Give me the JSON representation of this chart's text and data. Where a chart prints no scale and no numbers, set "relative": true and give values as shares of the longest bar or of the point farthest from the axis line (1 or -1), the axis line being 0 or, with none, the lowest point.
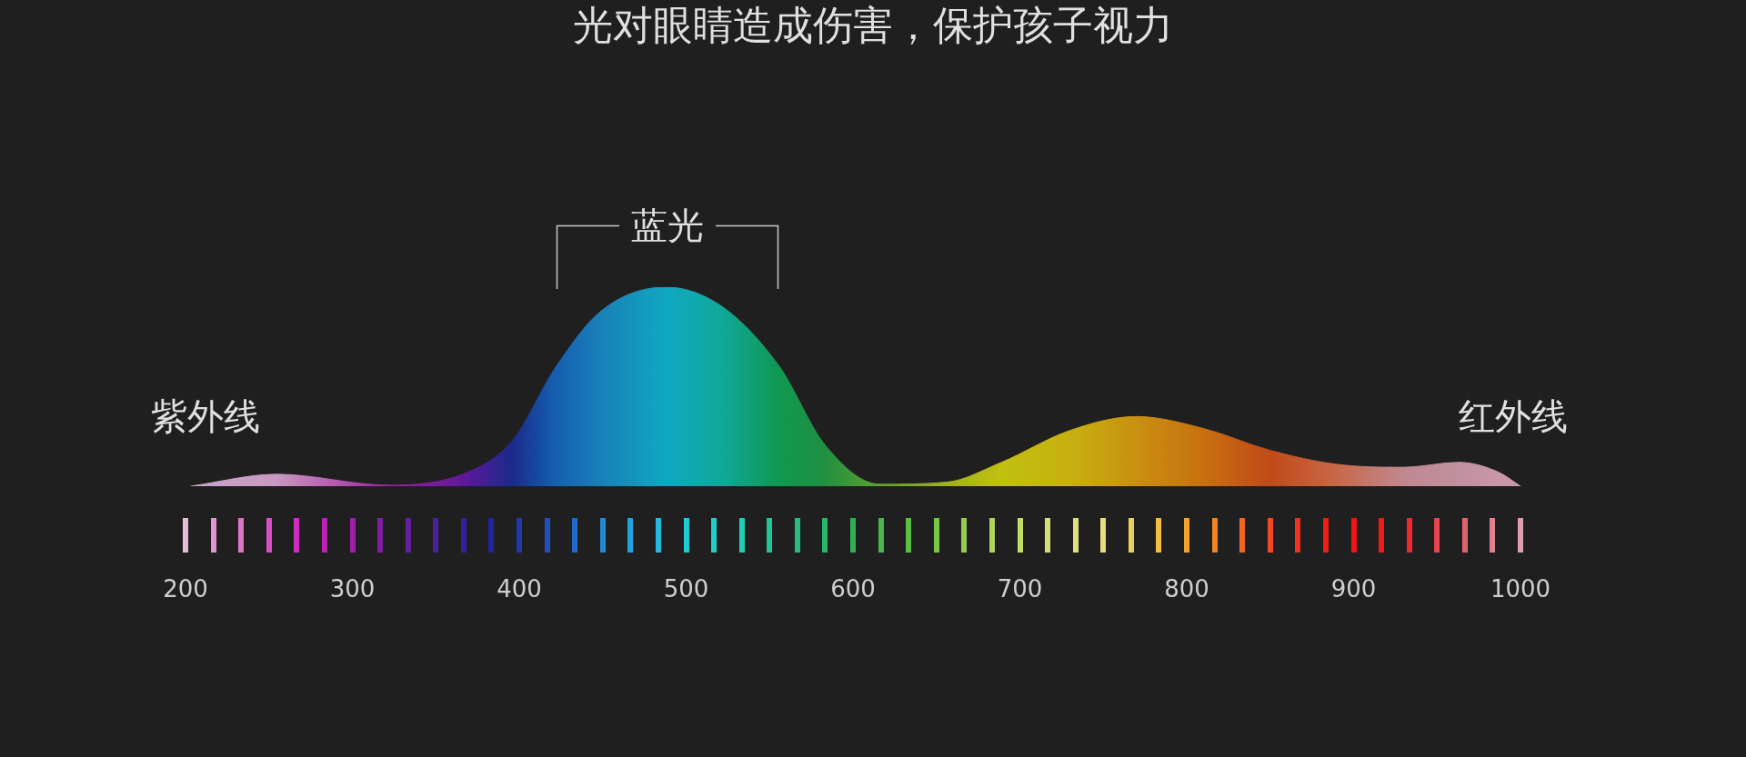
{
  "chart_data": {
    "type": "area",
    "title": "光对眼睛造成伤害，保护孩子视力",
    "relative": true,
    "x": [
      203,
      255,
      322,
      369,
      396,
      422,
      449,
      488,
      522,
      556,
      583,
      616,
      656,
      689,
      730,
      770,
      810,
      850,
      890,
      930,
      963,
      987,
      1000
    ],
    "series": [
      {
        "values": [
          0,
          0.06,
          0.005,
          0.07,
          0.23,
          0.6,
          0.88,
          1,
          0.9,
          0.6,
          0.21,
          0.01,
          0.02,
          0.12,
          0.28,
          0.35,
          0.29,
          0.18,
          0.11,
          0.095,
          0.12,
          0.07,
          0
        ],
        "colors": [
          "#c8a8c8",
          "#c898c0",
          "#a020a0",
          "#5a189a",
          "#1a2a8a",
          "#1560b0",
          "#1a80b8",
          "#10a8c0",
          "#10a898",
          "#109850",
          "#209040",
          "#60a030",
          "#a0b020",
          "#c0c010",
          "#c8b010",
          "#c89010",
          "#c87010",
          "#c04a18",
          "#c86848",
          "#c08890",
          "#c090a0",
          "#c898a8",
          "#c898a8"
        ]
      }
    ],
    "xlim": [
      200,
      1000
    ],
    "xticks": [
      200,
      300,
      400,
      500,
      600,
      700,
      800,
      900,
      1000
    ],
    "annotations": [
      "紫外线",
      "蓝光",
      "红外线"
    ],
    "grid": false,
    "legend": false
  }
}
